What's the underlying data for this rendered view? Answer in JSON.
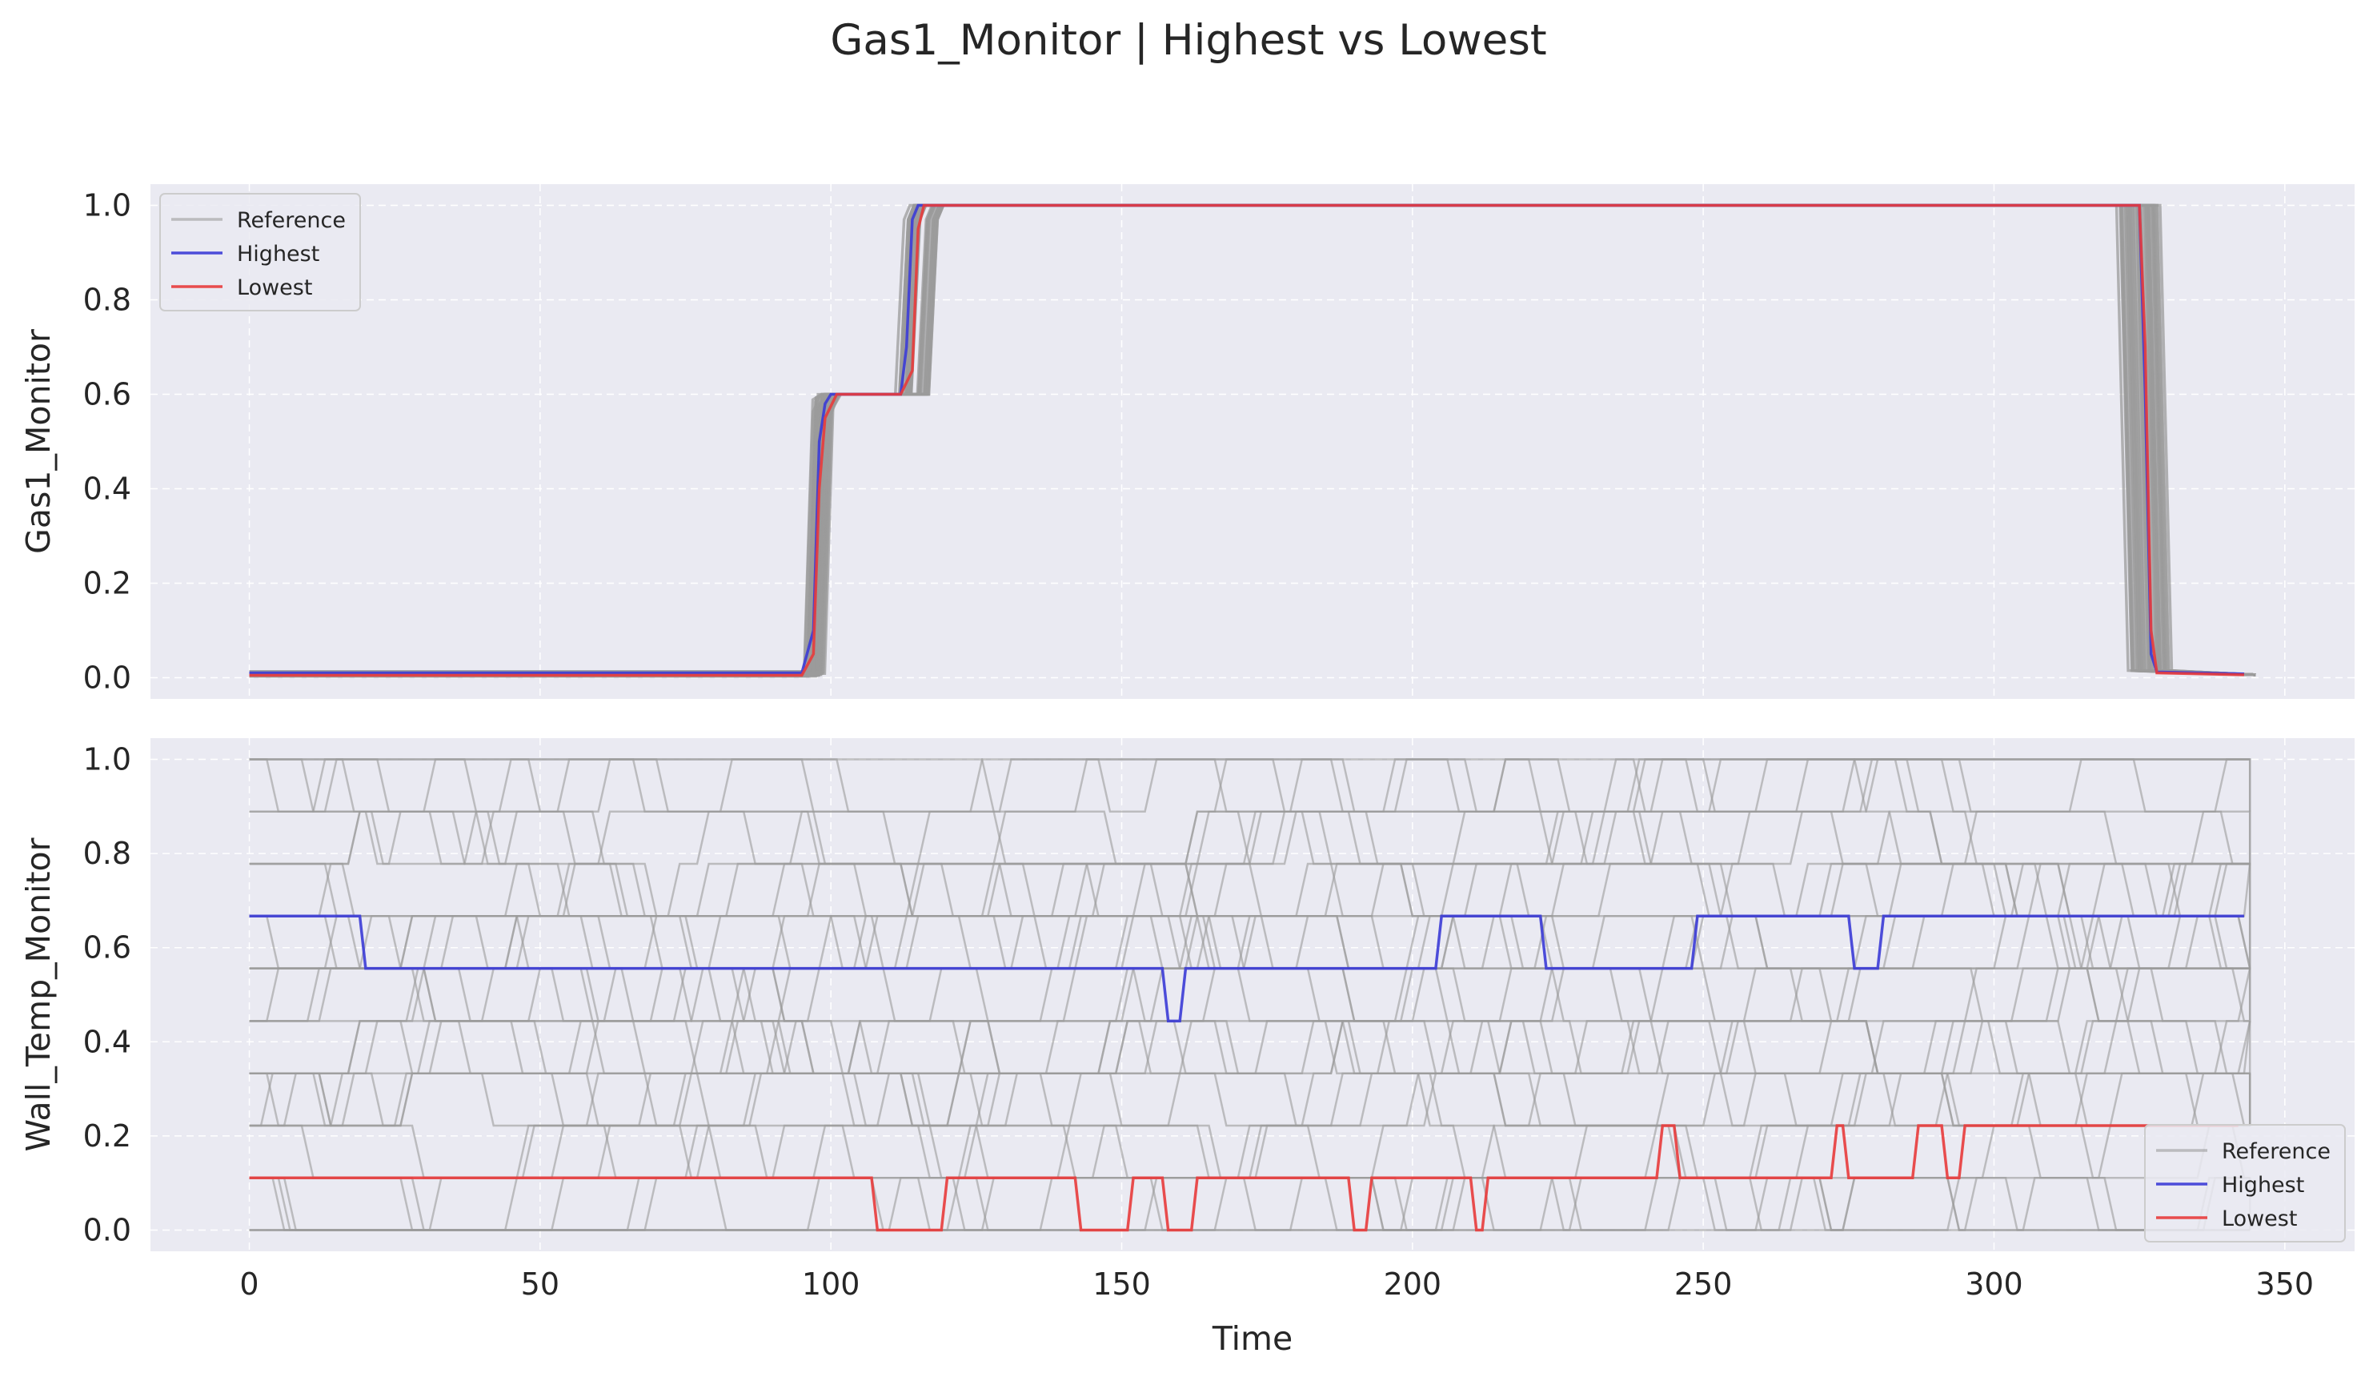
{
  "figure_title": "Gas1_Monitor | Highest vs Lowest",
  "colors": {
    "background": "#eaeaf2",
    "grid": "#ffffff",
    "reference": "#9b9b9b",
    "highest": "#3b3bd6",
    "lowest": "#e83b3b"
  },
  "chart_data": [
    {
      "type": "line",
      "ylabel": "Gas1_Monitor",
      "xlabel": "",
      "xlim": [
        -17,
        362
      ],
      "ylim": [
        -0.045,
        1.045
      ],
      "xticks": [
        0,
        50,
        100,
        150,
        200,
        250,
        300,
        350
      ],
      "xtick_labels": [],
      "yticks": [
        0.0,
        0.2,
        0.4,
        0.6,
        0.8,
        1.0
      ],
      "ytick_labels": [
        "0.0",
        "0.2",
        "0.4",
        "0.6",
        "0.8",
        "1.0"
      ],
      "grid": true,
      "legend": {
        "placement": "upper-left",
        "entries": [
          {
            "label": "Reference",
            "color": "#9b9b9b"
          },
          {
            "label": "Highest",
            "color": "#3b3bd6"
          },
          {
            "label": "Lowest",
            "color": "#e83b3b"
          }
        ]
      },
      "series": [
        {
          "name": "Highest",
          "color": "#3b3bd6",
          "x": [
            0,
            95,
            97,
            98,
            99,
            100,
            112,
            113,
            114,
            115,
            322,
            325,
            326,
            327,
            328,
            343
          ],
          "y": [
            0.01,
            0.01,
            0.1,
            0.5,
            0.58,
            0.6,
            0.6,
            0.7,
            0.97,
            1.0,
            1.0,
            1.0,
            0.6,
            0.05,
            0.012,
            0.008
          ]
        },
        {
          "name": "Lowest",
          "color": "#e83b3b",
          "x": [
            0,
            95,
            97,
            98,
            99,
            101,
            112,
            114,
            115,
            116,
            322,
            325,
            326,
            327,
            328,
            343
          ],
          "y": [
            0.005,
            0.005,
            0.05,
            0.4,
            0.55,
            0.6,
            0.6,
            0.65,
            0.95,
            1.0,
            1.0,
            1.0,
            0.7,
            0.1,
            0.01,
            0.006
          ]
        }
      ]
    },
    {
      "type": "line",
      "ylabel": "Wall_Temp_Monitor",
      "xlabel": "Time",
      "xlim": [
        -17,
        362
      ],
      "ylim": [
        -0.045,
        1.045
      ],
      "xticks": [
        0,
        50,
        100,
        150,
        200,
        250,
        300,
        350
      ],
      "xtick_labels": [
        "0",
        "50",
        "100",
        "150",
        "200",
        "250",
        "300",
        "350"
      ],
      "yticks": [
        0.0,
        0.2,
        0.4,
        0.6,
        0.8,
        1.0
      ],
      "ytick_labels": [
        "0.0",
        "0.2",
        "0.4",
        "0.6",
        "0.8",
        "1.0"
      ],
      "grid": true,
      "legend": {
        "placement": "lower-right",
        "entries": [
          {
            "label": "Reference",
            "color": "#9b9b9b"
          },
          {
            "label": "Highest",
            "color": "#3b3bd6"
          },
          {
            "label": "Lowest",
            "color": "#e83b3b"
          }
        ]
      },
      "series": [
        {
          "name": "Highest",
          "color": "#3b3bd6",
          "x": [
            0,
            19,
            20,
            157,
            158,
            160,
            161,
            204,
            205,
            222,
            223,
            248,
            249,
            275,
            276,
            280,
            281,
            343
          ],
          "y": [
            0.667,
            0.667,
            0.556,
            0.556,
            0.444,
            0.444,
            0.556,
            0.556,
            0.667,
            0.667,
            0.556,
            0.556,
            0.667,
            0.667,
            0.556,
            0.556,
            0.667,
            0.667
          ]
        },
        {
          "name": "Lowest",
          "color": "#e83b3b",
          "x": [
            0,
            107,
            108,
            119,
            120,
            142,
            143,
            151,
            152,
            157,
            158,
            162,
            163,
            166,
            167,
            189,
            190,
            192,
            193,
            210,
            211,
            212,
            213,
            242,
            243,
            245,
            246,
            272,
            273,
            274,
            275,
            286,
            287,
            291,
            292,
            294,
            295,
            342
          ],
          "y": [
            0.111,
            0.111,
            0.0,
            0.0,
            0.111,
            0.111,
            0.0,
            0.0,
            0.111,
            0.111,
            0.0,
            0.0,
            0.111,
            0.111,
            0.111,
            0.111,
            0.0,
            0.0,
            0.111,
            0.111,
            0.0,
            0.0,
            0.111,
            0.111,
            0.222,
            0.222,
            0.111,
            0.111,
            0.222,
            0.222,
            0.111,
            0.111,
            0.222,
            0.222,
            0.111,
            0.111,
            0.222,
            0.222
          ]
        }
      ]
    }
  ]
}
